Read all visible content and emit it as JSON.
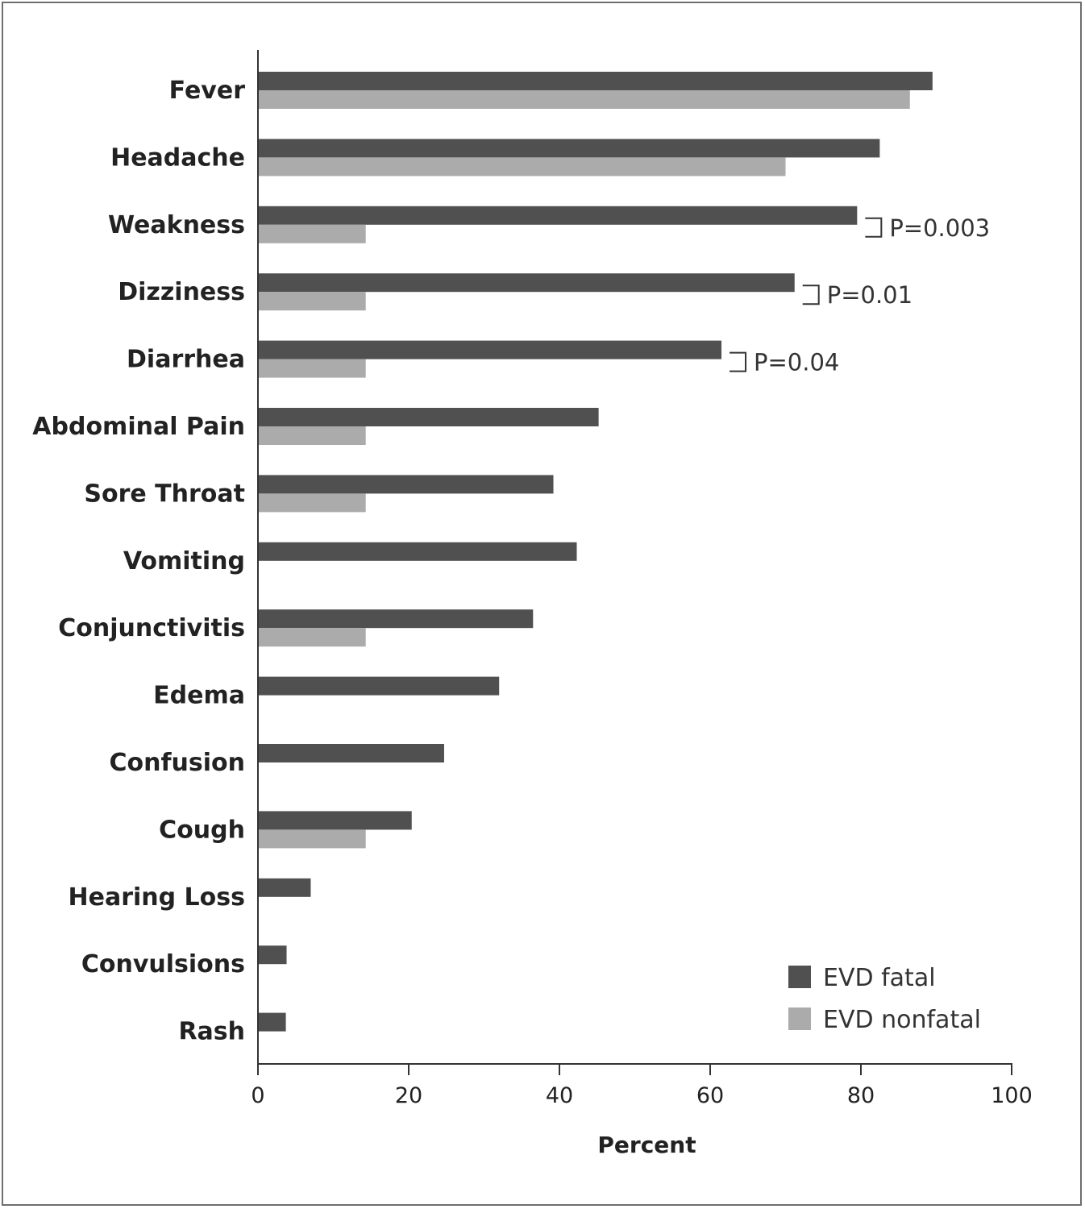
{
  "chart_data": {
    "type": "bar",
    "orientation": "horizontal",
    "categories": [
      "Fever",
      "Headache",
      "Weakness",
      "Dizziness",
      "Diarrhea",
      "Abdominal Pain",
      "Sore Throat",
      "Vomiting",
      "Conjunctivitis",
      "Edema",
      "Confusion",
      "Cough",
      "Hearing Loss",
      "Convulsions",
      "Rash"
    ],
    "series": [
      {
        "name": "EVD fatal",
        "color": "#505050",
        "values": [
          89.5,
          82.5,
          79.5,
          71.2,
          61.5,
          45.2,
          39.2,
          42.3,
          36.5,
          32.0,
          24.7,
          20.4,
          7.0,
          3.8,
          3.7
        ]
      },
      {
        "name": "EVD nonfatal",
        "color": "#ababab",
        "values": [
          86.5,
          70.0,
          14.3,
          14.3,
          14.3,
          14.3,
          14.3,
          null,
          14.3,
          null,
          null,
          14.3,
          null,
          null,
          null
        ]
      }
    ],
    "xlabel": "Percent",
    "xlim": [
      0,
      100
    ],
    "xticks": [
      "0",
      "20",
      "40",
      "60",
      "80",
      "100"
    ],
    "grid": false,
    "legend_position": "bottom-right",
    "annotations": [
      {
        "category": "Weakness",
        "text": "P=0.003"
      },
      {
        "category": "Dizziness",
        "text": "P=0.01"
      },
      {
        "category": "Diarrhea",
        "text": "P=0.04"
      }
    ]
  }
}
